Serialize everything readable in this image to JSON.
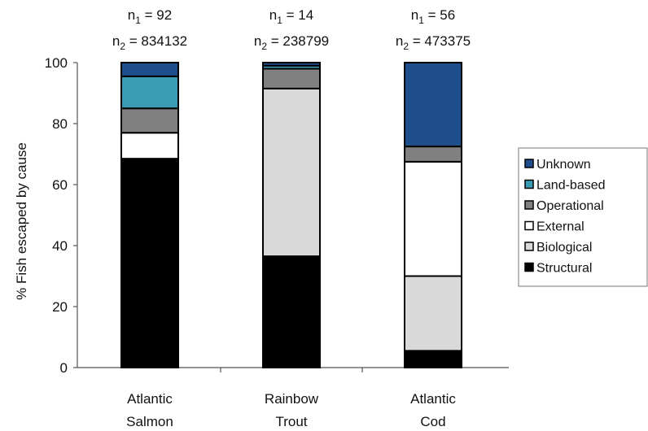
{
  "chart_data": {
    "type": "bar",
    "stacked": true,
    "title": "",
    "xlabel": "",
    "ylabel": "% Fish escaped by cause",
    "ylim": [
      0,
      100
    ],
    "yticks": [
      0,
      20,
      40,
      60,
      80,
      100
    ],
    "grid": false,
    "legend_position": "right",
    "categories": [
      {
        "line1": "Atlantic",
        "line2": "Salmon",
        "n1": "92",
        "n2": "834132"
      },
      {
        "line1": "Rainbow",
        "line2": "Trout",
        "n1": "14",
        "n2": "238799"
      },
      {
        "line1": "Atlantic",
        "line2": "Cod",
        "n1": "56",
        "n2": "473375"
      }
    ],
    "n1_prefix": "n",
    "n1_sub": "1",
    "n2_prefix": "n",
    "n2_sub": "2",
    "eq": " = ",
    "series": [
      {
        "name": "Structural",
        "color": "#000000",
        "values": [
          68.5,
          36.5,
          5.5
        ]
      },
      {
        "name": "Biological",
        "color": "#d9d9d9",
        "values": [
          0,
          55,
          24.5
        ]
      },
      {
        "name": "External",
        "color": "#ffffff",
        "values": [
          8.5,
          0,
          37.5
        ]
      },
      {
        "name": "Operational",
        "color": "#808080",
        "values": [
          8,
          6.5,
          5
        ]
      },
      {
        "name": "Land-based",
        "color": "#3a9bb5",
        "values": [
          10.5,
          1,
          0
        ]
      },
      {
        "name": "Unknown",
        "color": "#1f4e8c",
        "values": [
          4.5,
          1,
          27.5
        ]
      }
    ],
    "legend_order": [
      "Unknown",
      "Land-based",
      "Operational",
      "External",
      "Biological",
      "Structural"
    ]
  }
}
